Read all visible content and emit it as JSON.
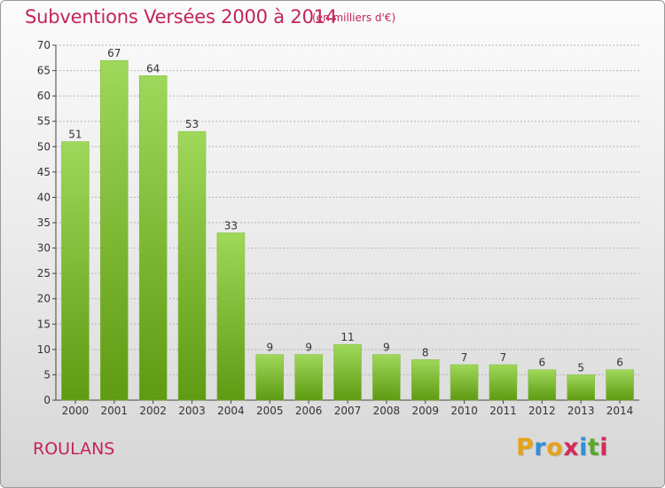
{
  "header": {
    "title": "Subventions Versées 2000 à 2014",
    "subtitle": "(en milliers d'€)"
  },
  "commune": "ROULANS",
  "logo": {
    "text": "Proxiti",
    "letter_colors": [
      "#e8a21a",
      "#2f8fd6",
      "#e8a21a",
      "#d42a5a",
      "#2f8fd6",
      "#5aa82a",
      "#d42a5a"
    ]
  },
  "colors": {
    "title": "#c4245a",
    "bar_top": "#9fd85a",
    "bar_bottom": "#5e9a12",
    "grid": "#b5b5b5"
  },
  "chart_data": {
    "type": "bar",
    "categories": [
      "2000",
      "2001",
      "2002",
      "2003",
      "2004",
      "2005",
      "2006",
      "2007",
      "2008",
      "2009",
      "2010",
      "2011",
      "2012",
      "2013",
      "2014"
    ],
    "values": [
      51,
      67,
      64,
      53,
      33,
      9,
      9,
      11,
      9,
      8,
      7,
      7,
      6,
      5,
      6
    ],
    "title": "Subventions Versées 2000 à 2014",
    "subtitle": "(en milliers d'€)",
    "xlabel": "",
    "ylabel": "",
    "ylim": [
      0,
      70
    ],
    "yticks": [
      0,
      5,
      10,
      15,
      20,
      25,
      30,
      35,
      40,
      45,
      50,
      55,
      60,
      65,
      70
    ],
    "grid": true,
    "data_labels": true
  }
}
